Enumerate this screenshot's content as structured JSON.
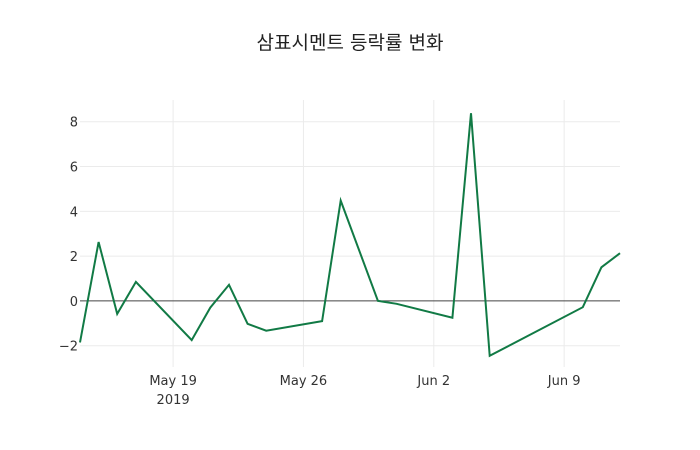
{
  "chart_data": {
    "type": "line",
    "title": "삼표시멘트 등락률 변화",
    "xlabel": "",
    "ylabel": "",
    "x": [
      "2019-05-14",
      "2019-05-15",
      "2019-05-16",
      "2019-05-17",
      "2019-05-20",
      "2019-05-21",
      "2019-05-22",
      "2019-05-23",
      "2019-05-24",
      "2019-05-27",
      "2019-05-28",
      "2019-05-30",
      "2019-05-31",
      "2019-06-03",
      "2019-06-04",
      "2019-06-05",
      "2019-06-10",
      "2019-06-11",
      "2019-06-12"
    ],
    "series": [
      {
        "name": "등락률",
        "color": "#117a45",
        "values": [
          -1.85,
          2.63,
          -0.58,
          0.85,
          -1.75,
          -0.3,
          0.72,
          -1.02,
          -1.33,
          -0.9,
          4.48,
          0.0,
          -0.13,
          -0.75,
          8.38,
          -2.45,
          -0.28,
          1.5,
          2.13
        ]
      }
    ],
    "ylim": [
      -2.95,
      8.97
    ],
    "xlim": [
      "2019-05-14",
      "2019-06-12"
    ],
    "y_ticks": [
      -2,
      0,
      2,
      4,
      6,
      8
    ],
    "y_tick_labels": [
      "−2",
      "0",
      "2",
      "4",
      "6",
      "8"
    ],
    "x_ticks": [
      "2019-05-19",
      "2019-05-26",
      "2019-06-02",
      "2019-06-09"
    ],
    "x_tick_labels": [
      "May 19\n2019",
      "May 26",
      "Jun 2",
      "Jun 9"
    ],
    "grid": true,
    "zero_line": true,
    "legend": false
  },
  "colors": {
    "line": "#117a45",
    "grid": "#ebebeb",
    "zero_line": "#444444",
    "text": "#333333"
  }
}
